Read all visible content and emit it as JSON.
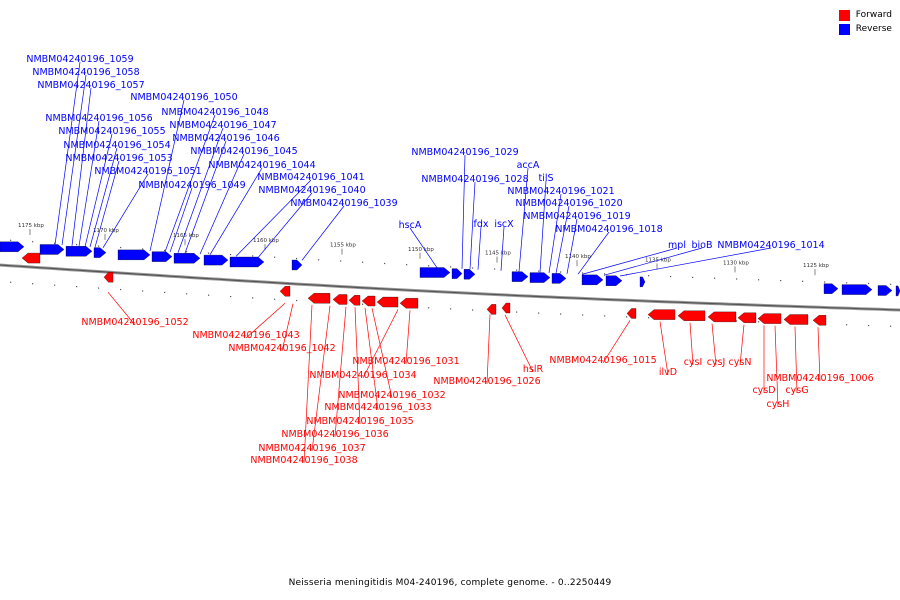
{
  "caption": "Neisseria meningitidis M04-240196, complete genome. - 0..2250449",
  "legend": [
    {
      "label": "Forward",
      "color": "#ff0000"
    },
    {
      "label": "Reverse",
      "color": "#0000ff"
    }
  ],
  "colors": {
    "forward": "#ff0000",
    "reverse": "#0000ff",
    "backbone": "#888888"
  },
  "ticks": [
    "1175 kbp",
    "1170 kbp",
    "1165 kbp",
    "1160 kbp",
    "1155 kbp",
    "1150 kbp",
    "1145 kbp",
    "1140 kbp",
    "1135 kbp",
    "1130 kbp",
    "1125 kbp"
  ],
  "reverse_labels": [
    "NMBM04240196_1059",
    "NMBM04240196_1058",
    "NMBM04240196_1057",
    "NMBM04240196_1050",
    "NMBM04240196_1056",
    "NMBM04240196_1048",
    "NMBM04240196_1047",
    "NMBM04240196_1055",
    "NMBM04240196_1046",
    "NMBM04240196_1054",
    "NMBM04240196_1045",
    "NMBM04240196_1053",
    "NMBM04240196_1044",
    "NMBM04240196_1051",
    "NMBM04240196_1041",
    "NMBM04240196_1049",
    "NMBM04240196_1040",
    "NMBM04240196_1039",
    "NMBM04240196_1029",
    "NMBM04240196_1028",
    "accA",
    "tilS",
    "NMBM04240196_1021",
    "NMBM04240196_1020",
    "NMBM04240196_1019",
    "fdx",
    "iscX",
    "hscA",
    "NMBM04240196_1018",
    "mpl",
    "bioB",
    "NMBM04240196_1014"
  ],
  "forward_labels": [
    "NMBM04240196_1052",
    "NMBM04240196_1043",
    "NMBM04240196_1042",
    "NMBM04240196_1031",
    "NMBM04240196_1034",
    "NMBM04240196_1032",
    "NMBM04240196_1033",
    "NMBM04240196_1035",
    "NMBM04240196_1036",
    "NMBM04240196_1037",
    "NMBM04240196_1038",
    "NMBM04240196_1026",
    "hslR",
    "NMBM04240196_1015",
    "ilvD",
    "cysI",
    "cysJ",
    "cysN",
    "NMBM04240196_1006",
    "cysD",
    "cysG",
    "cysH"
  ]
}
